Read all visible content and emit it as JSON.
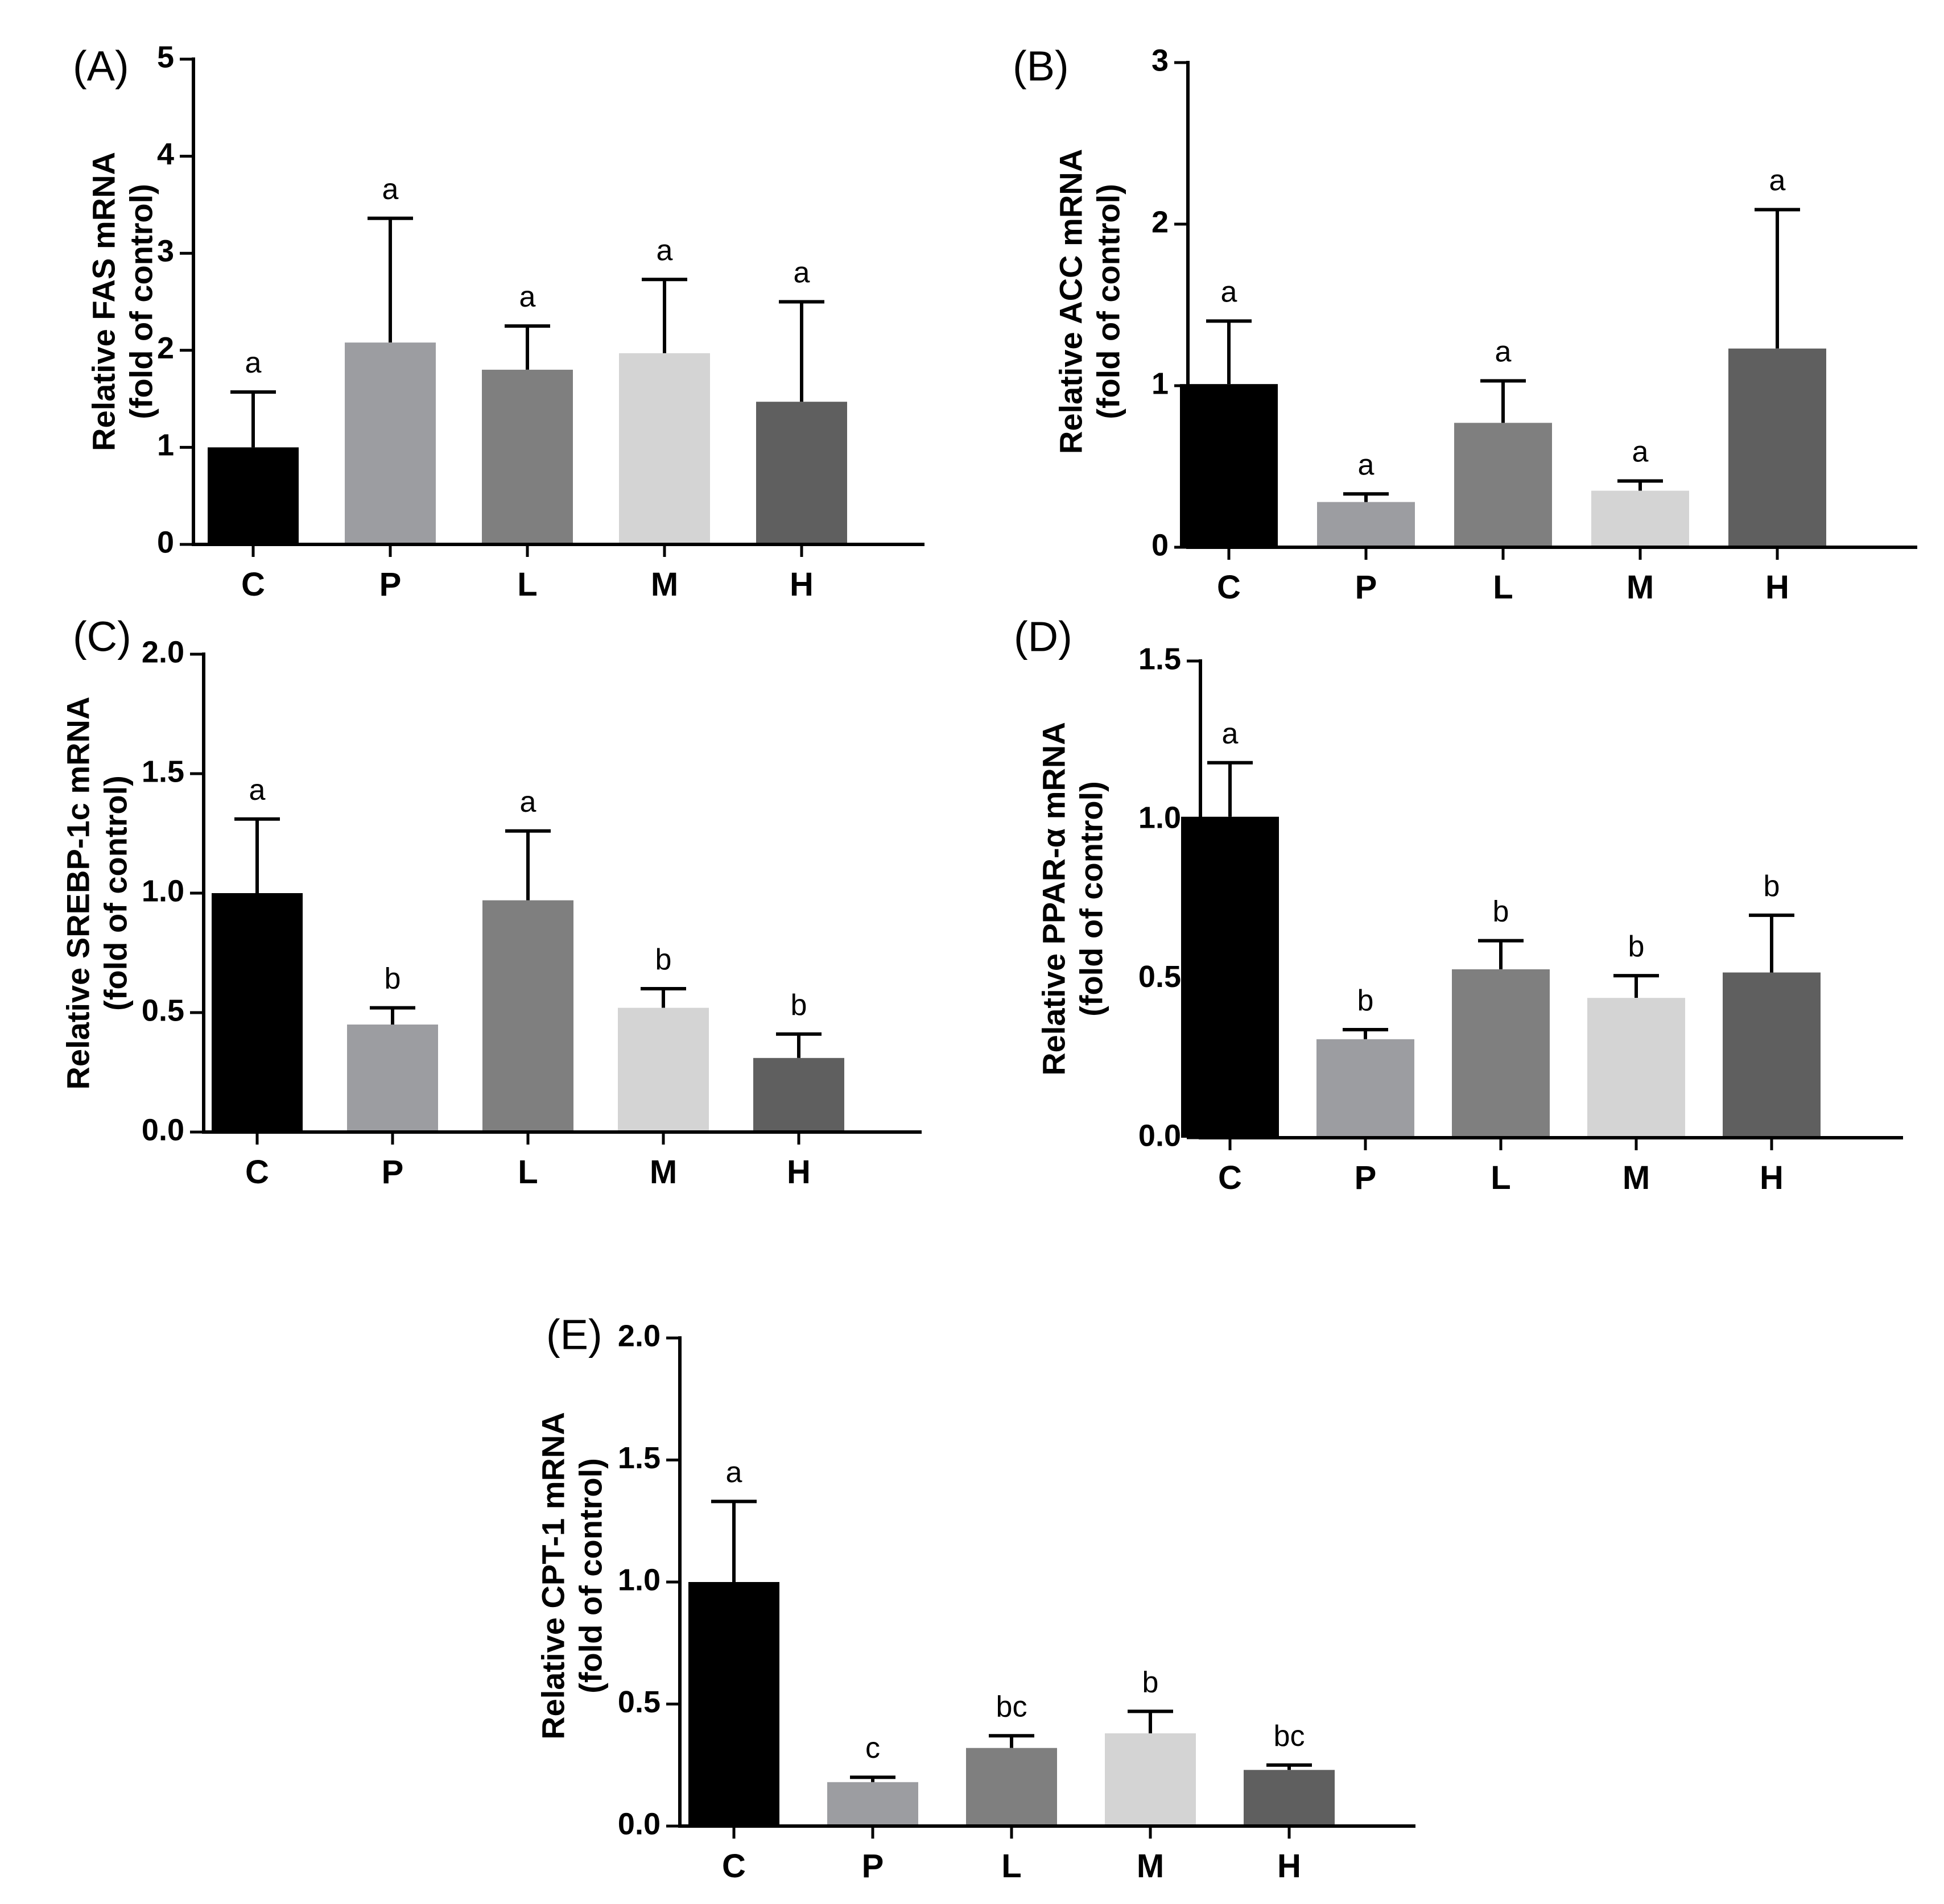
{
  "chart_data": [
    {
      "type": "bar",
      "panel": "(A)",
      "ylabel": [
        "Relative FAS mRNA",
        "(fold of control)"
      ],
      "ylim": [
        0,
        5
      ],
      "yticks": [
        "0",
        "1",
        "2",
        "3",
        "4",
        "5"
      ],
      "ytick_values": [
        0,
        1,
        2,
        3,
        4,
        5
      ],
      "categories": [
        "C",
        "P",
        "L",
        "M",
        "H"
      ],
      "values": [
        1.0,
        2.08,
        1.8,
        1.97,
        1.47
      ],
      "errors": [
        0.57,
        1.28,
        0.45,
        0.76,
        1.03
      ],
      "sig": [
        "a",
        "a",
        "a",
        "a",
        "a"
      ]
    },
    {
      "type": "bar",
      "panel": "(B)",
      "ylabel": [
        "Relative ACC mRNA",
        "(fold of control)"
      ],
      "ylim": [
        0,
        3
      ],
      "yticks": [
        "0",
        "1",
        "2",
        "3"
      ],
      "ytick_values": [
        0,
        1,
        2,
        3
      ],
      "categories": [
        "C",
        "P",
        "L",
        "M",
        "H"
      ],
      "values": [
        1.01,
        0.28,
        0.77,
        0.35,
        1.23
      ],
      "errors": [
        0.39,
        0.05,
        0.26,
        0.06,
        0.86
      ],
      "sig": [
        "a",
        "a",
        "a",
        "a",
        "a"
      ]
    },
    {
      "type": "bar",
      "panel": "(C)",
      "ylabel": [
        "Relative SREBP-1c mRNA",
        "(fold of control)"
      ],
      "ylim": [
        0,
        2.0
      ],
      "yticks": [
        "0.0",
        "0.5",
        "1.0",
        "1.5",
        "2.0"
      ],
      "ytick_values": [
        0,
        0.5,
        1.0,
        1.5,
        2.0
      ],
      "categories": [
        "C",
        "P",
        "L",
        "M",
        "H"
      ],
      "values": [
        1.0,
        0.45,
        0.97,
        0.52,
        0.31
      ],
      "errors": [
        0.31,
        0.07,
        0.29,
        0.08,
        0.1
      ],
      "sig": [
        "a",
        "b",
        "a",
        "b",
        "b"
      ]
    },
    {
      "type": "bar",
      "panel": "(D)",
      "ylabel": [
        "Relative PPAR-α mRNA",
        "(fold of control)"
      ],
      "ylim": [
        0,
        1.5
      ],
      "yticks": [
        "0.0",
        "0.5",
        "1.0",
        "1.5"
      ],
      "ytick_values": [
        0,
        0.5,
        1.0,
        1.5
      ],
      "categories": [
        "C",
        "P",
        "L",
        "M",
        "H"
      ],
      "values": [
        1.01,
        0.31,
        0.53,
        0.44,
        0.52
      ],
      "errors": [
        0.17,
        0.03,
        0.09,
        0.07,
        0.18
      ],
      "sig": [
        "a",
        "b",
        "b",
        "b",
        "b"
      ]
    },
    {
      "type": "bar",
      "panel": "(E)",
      "ylabel": [
        "Relative CPT-1 mRNA",
        "(fold of control)"
      ],
      "ylim": [
        0,
        2.0
      ],
      "yticks": [
        "0.0",
        "0.5",
        "1.0",
        "1.5",
        "2.0"
      ],
      "ytick_values": [
        0,
        0.5,
        1.0,
        1.5,
        2.0
      ],
      "categories": [
        "C",
        "P",
        "L",
        "M",
        "H"
      ],
      "values": [
        1.0,
        0.18,
        0.32,
        0.38,
        0.23
      ],
      "errors": [
        0.33,
        0.02,
        0.05,
        0.09,
        0.02
      ],
      "sig": [
        "a",
        "c",
        "bc",
        "b",
        "bc"
      ]
    }
  ],
  "colors": {
    "bars": [
      "#000000",
      "#9c9da1",
      "#7f7f7f",
      "#d4d4d4",
      "#5f5f5f"
    ],
    "axis": "#000000"
  }
}
